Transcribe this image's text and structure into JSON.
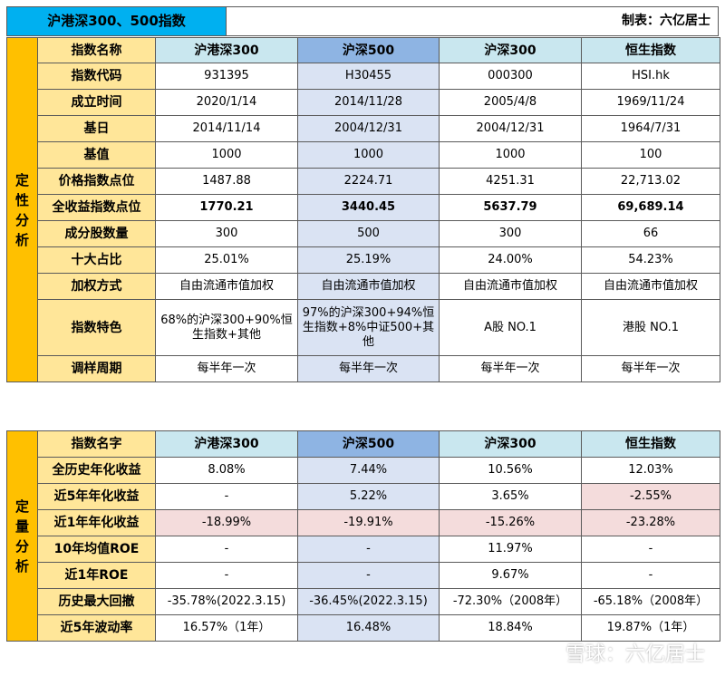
{
  "title": "沪港深300、500指数",
  "author": "制表：六亿居士",
  "watermark": "雪球：六亿居士",
  "qual": {
    "side": [
      "定",
      "性",
      "分",
      "析"
    ],
    "header_label": "指数名称",
    "columns": [
      "沪港深300",
      "沪深500",
      "沪深300",
      "恒生指数"
    ],
    "rows": [
      {
        "label": "指数代码",
        "values": [
          "931395",
          "H30455",
          "000300",
          "HSI.hk"
        ]
      },
      {
        "label": "成立时间",
        "values": [
          "2020/1/14",
          "2014/11/28",
          "2005/4/8",
          "1969/11/24"
        ]
      },
      {
        "label": "基日",
        "values": [
          "2014/11/14",
          "2004/12/31",
          "2004/12/31",
          "1964/7/31"
        ]
      },
      {
        "label": "基值",
        "values": [
          "1000",
          "1000",
          "1000",
          "100"
        ]
      },
      {
        "label": "价格指数点位",
        "values": [
          "1487.88",
          "2224.71",
          "4251.31",
          "22,713.02"
        ]
      },
      {
        "label": "全收益指数点位",
        "values": [
          "1770.21",
          "3440.45",
          "5637.79",
          "69,689.14"
        ]
      },
      {
        "label": "成分股数量",
        "values": [
          "300",
          "500",
          "300",
          "66"
        ]
      },
      {
        "label": "十大占比",
        "values": [
          "25.01%",
          "25.19%",
          "24.00%",
          "54.23%"
        ]
      },
      {
        "label": "加权方式",
        "values": [
          "自由流通市值加权",
          "自由流通市值加权",
          "自由流通市值加权",
          "自由流通市值加权"
        ]
      },
      {
        "label": "指数特色",
        "values": [
          "68%的沪深300+90%恒生指数+其他",
          "97%的沪深300+94%恒生指数+8%中证500+其他",
          "A股 NO.1",
          "港股 NO.1"
        ]
      },
      {
        "label": "调样周期",
        "values": [
          "每半年一次",
          "每半年一次",
          "每半年一次",
          "每半年一次"
        ]
      }
    ]
  },
  "quant": {
    "side": [
      "定",
      "量",
      "分",
      "析"
    ],
    "header_label": "指数名字",
    "columns": [
      "沪港深300",
      "沪深500",
      "沪深300",
      "恒生指数"
    ],
    "rows": [
      {
        "label": "全历史年化收益",
        "values": [
          "8.08%",
          "7.44%",
          "10.56%",
          "12.03%"
        ]
      },
      {
        "label": "近5年年化收益",
        "values": [
          "-",
          "5.22%",
          "3.65%",
          "-2.55%"
        ]
      },
      {
        "label": "近1年年化收益",
        "values": [
          "-18.99%",
          "-19.91%",
          "-15.26%",
          "-23.28%"
        ]
      },
      {
        "label": "10年均值ROE",
        "values": [
          "-",
          "-",
          "11.97%",
          "-"
        ]
      },
      {
        "label": "近1年ROE",
        "values": [
          "-",
          "-",
          "9.67%",
          "-"
        ]
      },
      {
        "label": "历史最大回撤",
        "values": [
          "-35.78%(2022.3.15)",
          "-36.45%(2022.3.15)",
          "-72.30%（2008年）",
          "-65.18%（2008年）"
        ]
      },
      {
        "label": "近5年波动率",
        "values": [
          "16.57%（1年）",
          "16.48%",
          "18.84%",
          "19.87%（1年）"
        ]
      }
    ]
  },
  "colors": {
    "side": "#ffc000",
    "label": "#ffe699",
    "title": "#00b0f0",
    "header_highlight": "#8eb4e3",
    "header": "#c9e7ef",
    "negative_highlight": "#f4dcdc"
  }
}
